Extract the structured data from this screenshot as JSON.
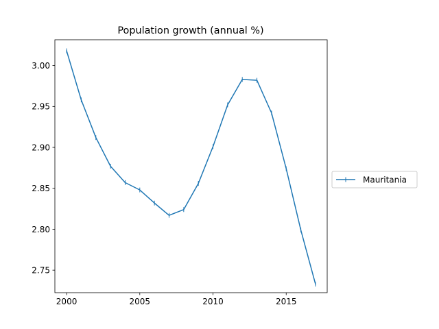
{
  "chart_data": {
    "type": "line",
    "title": "Population growth (annual %)",
    "xlabel": "",
    "ylabel": "",
    "xlim": [
      1999.2,
      2017.8
    ],
    "ylim": [
      2.7225,
      3.0315
    ],
    "x_ticks": [
      2000,
      2005,
      2010,
      2015
    ],
    "y_ticks": [
      2.75,
      2.8,
      2.85,
      2.9,
      2.95,
      3.0
    ],
    "grid": false,
    "legend_position": "right",
    "series": [
      {
        "name": "Mauritania",
        "color": "#1f77b4",
        "marker": "|",
        "x": [
          2000,
          2001,
          2002,
          2003,
          2004,
          2005,
          2006,
          2007,
          2008,
          2009,
          2010,
          2011,
          2012,
          2013,
          2014,
          2015,
          2016,
          2017
        ],
        "values": [
          3.018,
          2.958,
          2.912,
          2.877,
          2.857,
          2.848,
          2.832,
          2.817,
          2.824,
          2.856,
          2.901,
          2.952,
          2.983,
          2.982,
          2.942,
          2.874,
          2.799,
          2.733
        ]
      }
    ]
  }
}
